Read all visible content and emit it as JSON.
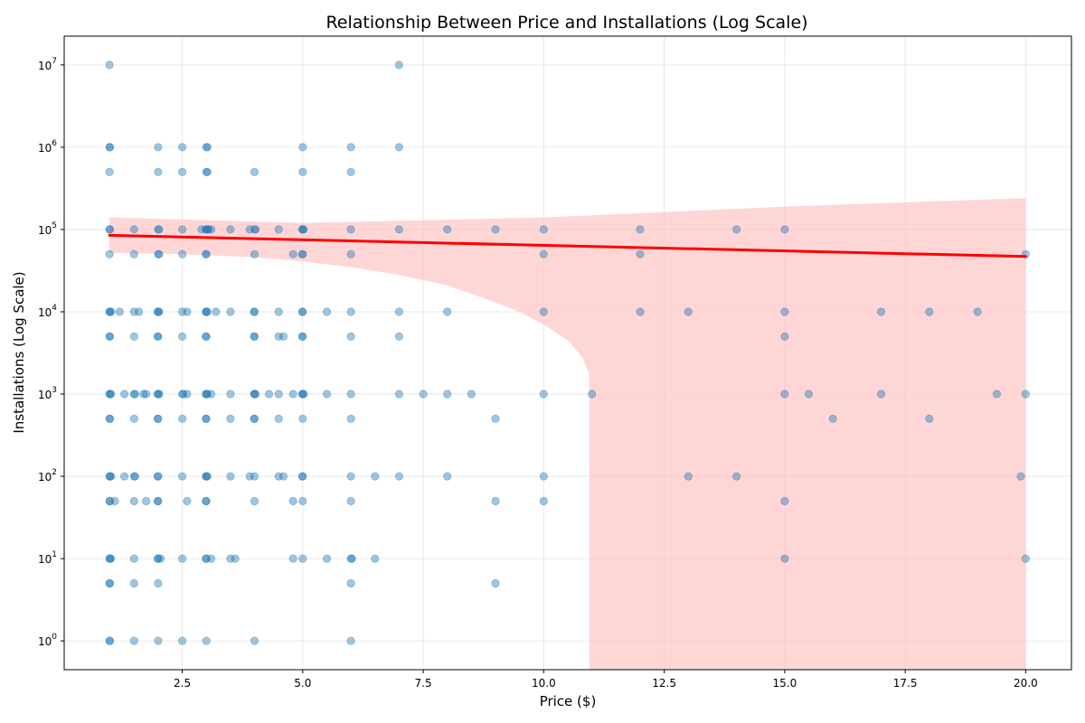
{
  "chart_data": {
    "type": "scatter",
    "title": "Relationship Between Price and Installations (Log Scale)",
    "xlabel": "Price ($)",
    "ylabel": "Installations (Log Scale)",
    "xlim": [
      0.05,
      20.95
    ],
    "ylim_log10": [
      -0.35,
      7.35
    ],
    "y_scale": "log",
    "grid": true,
    "x_ticks": [
      {
        "value": 2.5,
        "label": "2.5"
      },
      {
        "value": 5.0,
        "label": "5.0"
      },
      {
        "value": 7.5,
        "label": "7.5"
      },
      {
        "value": 10.0,
        "label": "10.0"
      },
      {
        "value": 12.5,
        "label": "12.5"
      },
      {
        "value": 15.0,
        "label": "15.0"
      },
      {
        "value": 17.5,
        "label": "17.5"
      },
      {
        "value": 20.0,
        "label": "20.0"
      }
    ],
    "y_ticks": [
      {
        "exp": 0,
        "base": "10",
        "sup": "0"
      },
      {
        "exp": 1,
        "base": "10",
        "sup": "1"
      },
      {
        "exp": 2,
        "base": "10",
        "sup": "2"
      },
      {
        "exp": 3,
        "base": "10",
        "sup": "3"
      },
      {
        "exp": 4,
        "base": "10",
        "sup": "4"
      },
      {
        "exp": 5,
        "base": "10",
        "sup": "5"
      },
      {
        "exp": 6,
        "base": "10",
        "sup": "6"
      },
      {
        "exp": 7,
        "base": "10",
        "sup": "7"
      }
    ],
    "point_color": "#1f77b4",
    "fit_color": "#ff0000",
    "ci_color": "#ffc0c0",
    "fit": {
      "x_start": 0.99,
      "x_end": 20.0,
      "y_start": 85000,
      "y_end": 47000
    },
    "confidence_band": {
      "upper": [
        [
          0.99,
          140000
        ],
        [
          5,
          120000
        ],
        [
          10,
          140000
        ],
        [
          15,
          190000
        ],
        [
          20,
          240000
        ]
      ],
      "lower": [
        [
          0.99,
          52000
        ],
        [
          2.5,
          50000
        ],
        [
          4,
          46000
        ],
        [
          5,
          41000
        ],
        [
          6,
          35000
        ],
        [
          7,
          28000
        ],
        [
          8,
          21000
        ],
        [
          9,
          13000
        ],
        [
          9.5,
          10000
        ],
        [
          10,
          7000
        ],
        [
          10.5,
          4500
        ],
        [
          10.8,
          2800
        ],
        [
          10.95,
          1700
        ],
        [
          10.95,
          0.3
        ],
        [
          20.0,
          0.3
        ]
      ]
    },
    "points": [
      [
        0.99,
        10000000
      ],
      [
        7,
        10000000
      ],
      [
        0.99,
        1000000
      ],
      [
        1,
        1000000
      ],
      [
        2,
        1000000
      ],
      [
        2.5,
        1000000
      ],
      [
        3,
        1000000
      ],
      [
        3.02,
        1000000
      ],
      [
        5,
        1000000
      ],
      [
        6,
        1000000
      ],
      [
        7,
        1000000
      ],
      [
        0.99,
        500000
      ],
      [
        2,
        500000
      ],
      [
        2.5,
        500000
      ],
      [
        3,
        500000
      ],
      [
        3.02,
        500000
      ],
      [
        4,
        500000
      ],
      [
        5,
        500000
      ],
      [
        6,
        500000
      ],
      [
        0.99,
        100000
      ],
      [
        1,
        100000
      ],
      [
        1.5,
        100000
      ],
      [
        2,
        100000
      ],
      [
        2.02,
        100000
      ],
      [
        2.5,
        100000
      ],
      [
        2.9,
        100000
      ],
      [
        2.99,
        100000
      ],
      [
        3,
        100000
      ],
      [
        3.02,
        100000
      ],
      [
        3.05,
        100000
      ],
      [
        3.1,
        100000
      ],
      [
        3.5,
        100000
      ],
      [
        3.9,
        100000
      ],
      [
        4,
        100000
      ],
      [
        4.02,
        100000
      ],
      [
        4.5,
        100000
      ],
      [
        4.99,
        100000
      ],
      [
        5,
        100000
      ],
      [
        5.02,
        100000
      ],
      [
        6,
        100000
      ],
      [
        7,
        100000
      ],
      [
        8,
        100000
      ],
      [
        9,
        100000
      ],
      [
        10,
        100000
      ],
      [
        12,
        100000
      ],
      [
        14,
        100000
      ],
      [
        15,
        100000
      ],
      [
        0.99,
        50000
      ],
      [
        1.5,
        50000
      ],
      [
        2,
        50000
      ],
      [
        2.02,
        50000
      ],
      [
        2.5,
        50000
      ],
      [
        2.99,
        50000
      ],
      [
        3,
        50000
      ],
      [
        4,
        50000
      ],
      [
        4.8,
        50000
      ],
      [
        4.99,
        50000
      ],
      [
        5,
        50000
      ],
      [
        6,
        50000
      ],
      [
        10,
        50000
      ],
      [
        12,
        50000
      ],
      [
        20,
        50000
      ],
      [
        0.99,
        10000
      ],
      [
        1,
        10000
      ],
      [
        1.02,
        10000
      ],
      [
        1.2,
        10000
      ],
      [
        1.5,
        10000
      ],
      [
        1.6,
        10000
      ],
      [
        1.99,
        10000
      ],
      [
        2,
        10000
      ],
      [
        2.02,
        10000
      ],
      [
        2.5,
        10000
      ],
      [
        2.6,
        10000
      ],
      [
        2.99,
        10000
      ],
      [
        3,
        10000
      ],
      [
        3.02,
        10000
      ],
      [
        3.2,
        10000
      ],
      [
        3.5,
        10000
      ],
      [
        3.99,
        10000
      ],
      [
        4,
        10000
      ],
      [
        4.5,
        10000
      ],
      [
        4.99,
        10000
      ],
      [
        5,
        10000
      ],
      [
        5.5,
        10000
      ],
      [
        6,
        10000
      ],
      [
        7,
        10000
      ],
      [
        8,
        10000
      ],
      [
        10,
        10000
      ],
      [
        12,
        10000
      ],
      [
        13,
        10000
      ],
      [
        15,
        10000
      ],
      [
        17,
        10000
      ],
      [
        18,
        10000
      ],
      [
        19,
        10000
      ],
      [
        0.99,
        5000
      ],
      [
        1,
        5000
      ],
      [
        1.5,
        5000
      ],
      [
        1.99,
        5000
      ],
      [
        2,
        5000
      ],
      [
        2.5,
        5000
      ],
      [
        2.99,
        5000
      ],
      [
        3,
        5000
      ],
      [
        3.99,
        5000
      ],
      [
        4,
        5000
      ],
      [
        4.5,
        5000
      ],
      [
        4.6,
        5000
      ],
      [
        4.99,
        5000
      ],
      [
        5,
        5000
      ],
      [
        6,
        5000
      ],
      [
        7,
        5000
      ],
      [
        15,
        5000
      ],
      [
        0.99,
        1000
      ],
      [
        1,
        1000
      ],
      [
        1.02,
        1000
      ],
      [
        1.3,
        1000
      ],
      [
        1.5,
        1000
      ],
      [
        1.52,
        1000
      ],
      [
        1.7,
        1000
      ],
      [
        1.75,
        1000
      ],
      [
        1.99,
        1000
      ],
      [
        2,
        1000
      ],
      [
        2.02,
        1000
      ],
      [
        2.5,
        1000
      ],
      [
        2.52,
        1000
      ],
      [
        2.6,
        1000
      ],
      [
        2.99,
        1000
      ],
      [
        3,
        1000
      ],
      [
        3.02,
        1000
      ],
      [
        3.1,
        1000
      ],
      [
        3.5,
        1000
      ],
      [
        3.99,
        1000
      ],
      [
        4,
        1000
      ],
      [
        4.02,
        1000
      ],
      [
        4.3,
        1000
      ],
      [
        4.5,
        1000
      ],
      [
        4.8,
        1000
      ],
      [
        4.99,
        1000
      ],
      [
        5,
        1000
      ],
      [
        5.02,
        1000
      ],
      [
        5.5,
        1000
      ],
      [
        6,
        1000
      ],
      [
        7,
        1000
      ],
      [
        7.5,
        1000
      ],
      [
        8,
        1000
      ],
      [
        8.5,
        1000
      ],
      [
        10,
        1000
      ],
      [
        11,
        1000
      ],
      [
        15,
        1000
      ],
      [
        15.5,
        1000
      ],
      [
        17,
        1000
      ],
      [
        19.4,
        1000
      ],
      [
        20,
        1000
      ],
      [
        0.99,
        500
      ],
      [
        1,
        500
      ],
      [
        1.5,
        500
      ],
      [
        1.99,
        500
      ],
      [
        2,
        500
      ],
      [
        2.5,
        500
      ],
      [
        2.99,
        500
      ],
      [
        3,
        500
      ],
      [
        3.5,
        500
      ],
      [
        3.99,
        500
      ],
      [
        4,
        500
      ],
      [
        4.5,
        500
      ],
      [
        5,
        500
      ],
      [
        6,
        500
      ],
      [
        9,
        500
      ],
      [
        16,
        500
      ],
      [
        18,
        500
      ],
      [
        0.99,
        100
      ],
      [
        1,
        100
      ],
      [
        1.02,
        100
      ],
      [
        1.3,
        100
      ],
      [
        1.5,
        100
      ],
      [
        1.52,
        100
      ],
      [
        1.99,
        100
      ],
      [
        2,
        100
      ],
      [
        2.5,
        100
      ],
      [
        2.99,
        100
      ],
      [
        3,
        100
      ],
      [
        3.02,
        100
      ],
      [
        3.5,
        100
      ],
      [
        3.9,
        100
      ],
      [
        4,
        100
      ],
      [
        4.5,
        100
      ],
      [
        4.6,
        100
      ],
      [
        4.99,
        100
      ],
      [
        5,
        100
      ],
      [
        6,
        100
      ],
      [
        6.5,
        100
      ],
      [
        7,
        100
      ],
      [
        8,
        100
      ],
      [
        10,
        100
      ],
      [
        13,
        100
      ],
      [
        14,
        100
      ],
      [
        19.9,
        100
      ],
      [
        0.99,
        50
      ],
      [
        1,
        50
      ],
      [
        1.1,
        50
      ],
      [
        1.5,
        50
      ],
      [
        1.75,
        50
      ],
      [
        1.99,
        50
      ],
      [
        2,
        50
      ],
      [
        2.6,
        50
      ],
      [
        2.99,
        50
      ],
      [
        3,
        50
      ],
      [
        4,
        50
      ],
      [
        4.8,
        50
      ],
      [
        5,
        50
      ],
      [
        6,
        50
      ],
      [
        9,
        50
      ],
      [
        10,
        50
      ],
      [
        15,
        50
      ],
      [
        0.99,
        10
      ],
      [
        1,
        10
      ],
      [
        1.02,
        10
      ],
      [
        1.5,
        10
      ],
      [
        1.99,
        10
      ],
      [
        2,
        10
      ],
      [
        2.05,
        10
      ],
      [
        2.5,
        10
      ],
      [
        2.99,
        10
      ],
      [
        3,
        10
      ],
      [
        3.1,
        10
      ],
      [
        3.5,
        10
      ],
      [
        3.6,
        10
      ],
      [
        4.8,
        10
      ],
      [
        5,
        10
      ],
      [
        5.5,
        10
      ],
      [
        6,
        10
      ],
      [
        6.02,
        10
      ],
      [
        6.5,
        10
      ],
      [
        15,
        10
      ],
      [
        20,
        10
      ],
      [
        0.99,
        5
      ],
      [
        1,
        5
      ],
      [
        1.5,
        5
      ],
      [
        2,
        5
      ],
      [
        6,
        5
      ],
      [
        9,
        5
      ],
      [
        0.99,
        1
      ],
      [
        1,
        1
      ],
      [
        1.5,
        1
      ],
      [
        2,
        1
      ],
      [
        2.5,
        1
      ],
      [
        3,
        1
      ],
      [
        4,
        1
      ],
      [
        6,
        1
      ]
    ]
  }
}
